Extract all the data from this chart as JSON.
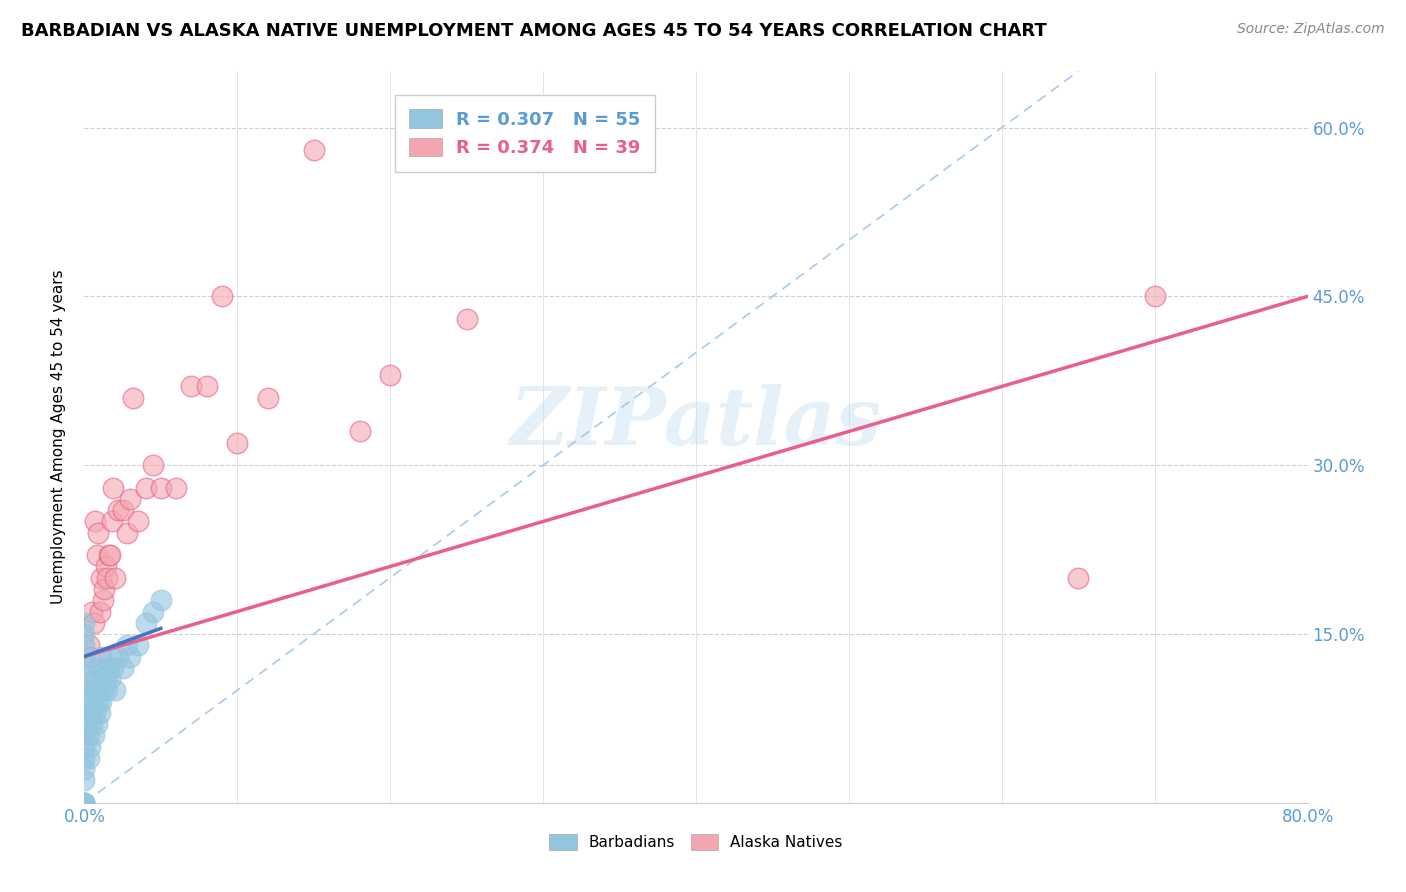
{
  "title": "BARBADIAN VS ALASKA NATIVE UNEMPLOYMENT AMONG AGES 45 TO 54 YEARS CORRELATION CHART",
  "source": "Source: ZipAtlas.com",
  "ylabel": "Unemployment Among Ages 45 to 54 years",
  "xlim": [
    0,
    0.8
  ],
  "ylim": [
    0,
    0.65
  ],
  "xticks": [
    0.0,
    0.1,
    0.2,
    0.3,
    0.4,
    0.5,
    0.6,
    0.7,
    0.8
  ],
  "xticklabels": [
    "0.0%",
    "",
    "",
    "",
    "",
    "",
    "",
    "",
    "80.0%"
  ],
  "ytick_positions": [
    0.0,
    0.15,
    0.3,
    0.45,
    0.6
  ],
  "ytick_labels": [
    "",
    "15.0%",
    "30.0%",
    "45.0%",
    "60.0%"
  ],
  "barbadian_R": 0.307,
  "barbadian_N": 55,
  "alaska_R": 0.374,
  "alaska_N": 39,
  "barbadian_color": "#92c5de",
  "alaska_color": "#f4a6b0",
  "alaska_edge_color": "#e8608a",
  "trendline_alaska_color": "#e8608a",
  "trendline_barbadian_color": "#4472c4",
  "ref_line_color": "#a0c4e8",
  "watermark": "ZIPatlas",
  "barbadian_scatter_x": [
    0.0,
    0.0,
    0.0,
    0.0,
    0.0,
    0.0,
    0.0,
    0.0,
    0.0,
    0.0,
    0.0,
    0.0,
    0.0,
    0.0,
    0.0,
    0.0,
    0.0,
    0.0,
    0.0,
    0.0,
    0.003,
    0.003,
    0.004,
    0.004,
    0.005,
    0.005,
    0.006,
    0.006,
    0.007,
    0.007,
    0.008,
    0.008,
    0.009,
    0.009,
    0.01,
    0.01,
    0.011,
    0.011,
    0.012,
    0.013,
    0.014,
    0.015,
    0.016,
    0.017,
    0.018,
    0.019,
    0.02,
    0.022,
    0.025,
    0.028,
    0.03,
    0.035,
    0.04,
    0.045,
    0.05
  ],
  "barbadian_scatter_y": [
    0.0,
    0.0,
    0.0,
    0.0,
    0.0,
    0.02,
    0.03,
    0.04,
    0.05,
    0.06,
    0.07,
    0.08,
    0.09,
    0.1,
    0.11,
    0.12,
    0.13,
    0.14,
    0.15,
    0.16,
    0.04,
    0.06,
    0.05,
    0.08,
    0.07,
    0.09,
    0.06,
    0.1,
    0.08,
    0.11,
    0.07,
    0.1,
    0.09,
    0.12,
    0.08,
    0.11,
    0.09,
    0.13,
    0.1,
    0.12,
    0.11,
    0.1,
    0.12,
    0.11,
    0.13,
    0.12,
    0.1,
    0.13,
    0.12,
    0.14,
    0.13,
    0.14,
    0.16,
    0.17,
    0.18
  ],
  "alaska_scatter_x": [
    0.003,
    0.004,
    0.005,
    0.006,
    0.007,
    0.008,
    0.009,
    0.01,
    0.011,
    0.012,
    0.013,
    0.014,
    0.015,
    0.016,
    0.017,
    0.018,
    0.019,
    0.02,
    0.022,
    0.025,
    0.028,
    0.03,
    0.032,
    0.035,
    0.04,
    0.045,
    0.05,
    0.06,
    0.07,
    0.08,
    0.09,
    0.1,
    0.12,
    0.15,
    0.18,
    0.2,
    0.25,
    0.65,
    0.7
  ],
  "alaska_scatter_y": [
    0.14,
    0.13,
    0.17,
    0.16,
    0.25,
    0.22,
    0.24,
    0.17,
    0.2,
    0.18,
    0.19,
    0.21,
    0.2,
    0.22,
    0.22,
    0.25,
    0.28,
    0.2,
    0.26,
    0.26,
    0.24,
    0.27,
    0.36,
    0.25,
    0.28,
    0.3,
    0.28,
    0.28,
    0.37,
    0.37,
    0.45,
    0.32,
    0.36,
    0.58,
    0.33,
    0.38,
    0.43,
    0.2,
    0.45
  ],
  "alaska_trendline_x0": 0.0,
  "alaska_trendline_y0": 0.13,
  "alaska_trendline_x1": 0.8,
  "alaska_trendline_y1": 0.45,
  "barbadian_trendline_x0": 0.0,
  "barbadian_trendline_y0": 0.13,
  "barbadian_trendline_x1": 0.05,
  "barbadian_trendline_y1": 0.155,
  "ref_line_x0": 0.0,
  "ref_line_y0": 0.0,
  "ref_line_x1": 0.65,
  "ref_line_y1": 0.65
}
